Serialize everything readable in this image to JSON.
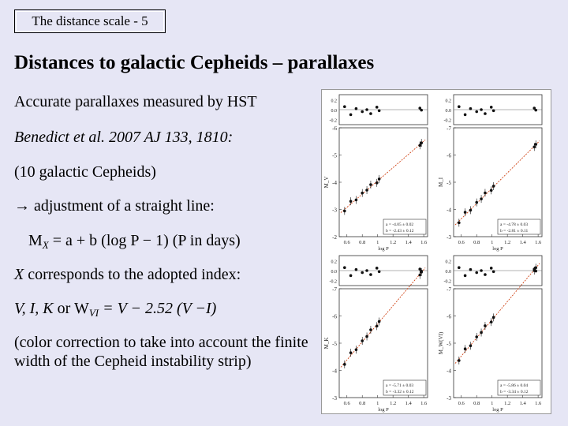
{
  "slide": {
    "tag": "The distance scale - 5",
    "title": "Distances to galactic Cepheids – parallaxes",
    "lines": {
      "l1": "Accurate parallaxes measured by HST",
      "l2": "Benedict et al. 2007 AJ 133, 1810:",
      "l3": "(10 galactic Cepheids)",
      "l4": "→ adjustment of a straight line:",
      "l5a": "M",
      "l5sub": "X",
      "l5b": " = a + b (log P − 1)   (P in days)",
      "l6a": "X",
      "l6b": " corresponds to the adopted index:",
      "l7a": "V, I, K",
      "l7b": " or W",
      "l7sub": "VI",
      "l7c": " = V − 2.52 (V −I)",
      "l8": "(color correction to take into account the finite width of the Cepheid instability strip)"
    }
  },
  "figure": {
    "panels": [
      {
        "ylabel": "M_V",
        "xlabel": "log P",
        "fit_a": "a = -4.05 ± 0.02",
        "fit_b": "b = -2.43 ± 0.12"
      },
      {
        "ylabel": "M_I",
        "xlabel": "log P",
        "fit_a": "a = -4.78 ± 0.03",
        "fit_b": "b = -2.81 ± 0.11"
      },
      {
        "ylabel": "M_K",
        "xlabel": "log P",
        "fit_a": "a = -5.71 ± 0.03",
        "fit_b": "b = -3.32 ± 0.12"
      },
      {
        "ylabel": "M_W(VI)",
        "xlabel": "log P",
        "fit_a": "a = -5.86 ± 0.04",
        "fit_b": "b = -3.34 ± 0.12"
      }
    ],
    "residual_ticks": [
      "0.2",
      "0.0",
      "-0.2"
    ],
    "x_ticks": [
      "0.6",
      "0.8",
      "1",
      "1.2",
      "1.4",
      "1.6"
    ],
    "y_ticks_V": [
      "-6",
      "-5",
      "-4",
      "-3",
      "-2"
    ],
    "y_ticks_IK": [
      "-7",
      "-6",
      "-5",
      "-4",
      "-3"
    ],
    "points": [
      {
        "logP": 0.57,
        "res": 0.06
      },
      {
        "logP": 0.65,
        "res": -0.1
      },
      {
        "logP": 0.72,
        "res": 0.02
      },
      {
        "logP": 0.8,
        "res": -0.04
      },
      {
        "logP": 0.86,
        "res": 0.0
      },
      {
        "logP": 0.91,
        "res": -0.08
      },
      {
        "logP": 0.99,
        "res": 0.05
      },
      {
        "logP": 1.02,
        "res": -0.02
      },
      {
        "logP": 1.55,
        "res": 0.03
      },
      {
        "logP": 1.57,
        "res": -0.01
      }
    ],
    "accent_color": "#cc3300"
  }
}
